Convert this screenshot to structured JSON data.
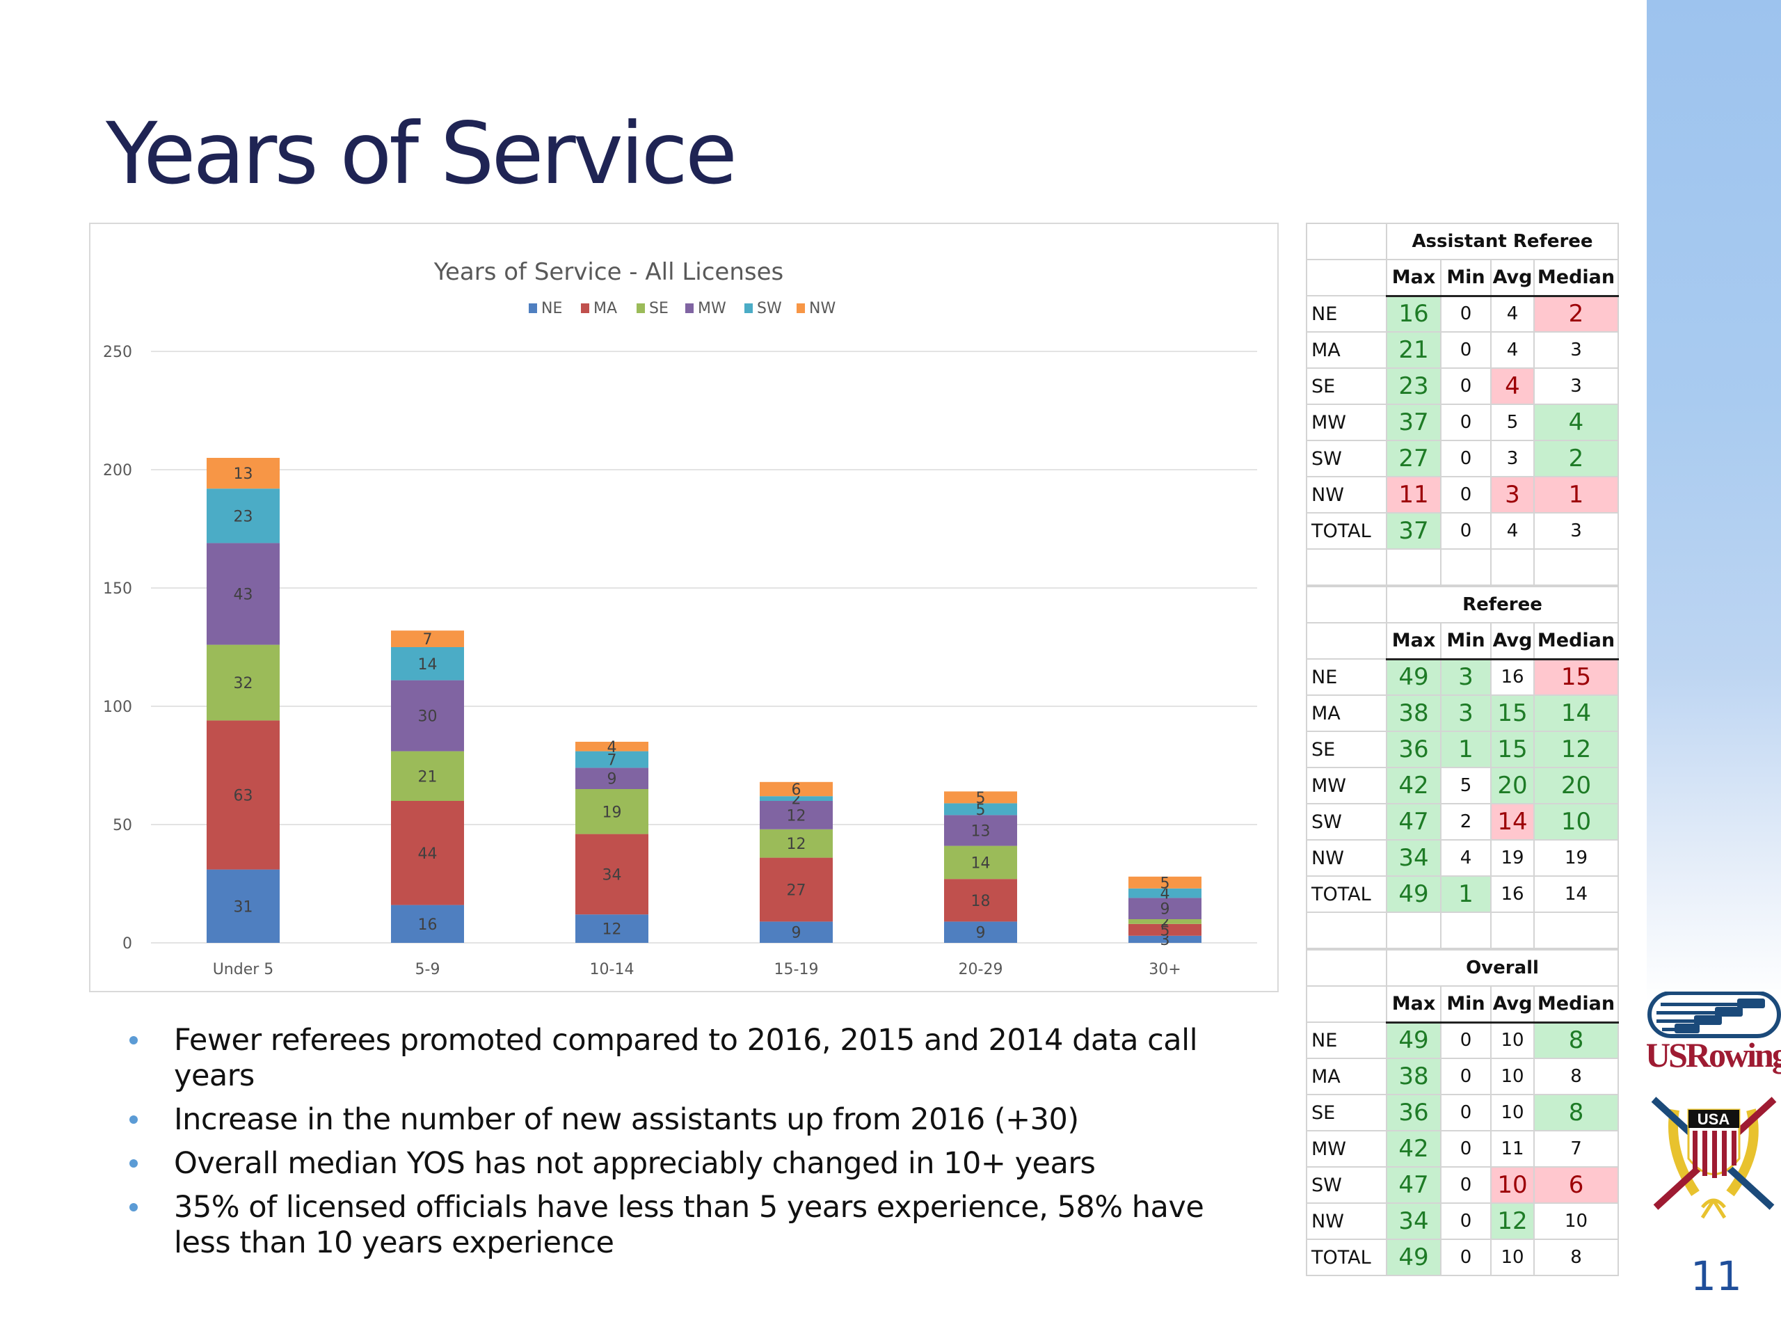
{
  "slide": {
    "title": "Years of Service",
    "page_number": "11",
    "logo_text": "USRowing",
    "crest_text": "USA",
    "bullets": [
      "Fewer referees promoted compared to 2016, 2015 and 2014 data call years",
      "Increase in the number of new assistants up from 2016 (+30)",
      "Overall median YOS has not appreciably changed in 10+ years",
      "35% of licensed officials have less than 5 years experience, 58% have less than 10 years experience"
    ]
  },
  "colors": {
    "NE": "#4F7FC0",
    "MA": "#C0504D",
    "SE": "#9BBB59",
    "MW": "#8064A2",
    "SW": "#4BACC6",
    "NW": "#F79646",
    "title": "#1F2454",
    "good_fill": "#C6EFCE",
    "good_text": "#1E7B26",
    "bad_fill": "#FFC7CE",
    "bad_text": "#9C0006"
  },
  "chart_data": {
    "type": "bar",
    "stacked": true,
    "title": "Years of Service - All Licenses",
    "xlabel": "",
    "ylabel": "",
    "categories": [
      "Under 5",
      "5-9",
      "10-14",
      "15-19",
      "20-29",
      "30+"
    ],
    "ylim": [
      0,
      250
    ],
    "yticks": [
      0,
      50,
      100,
      150,
      200,
      250
    ],
    "grid": true,
    "legend_position": "top-center",
    "data_labels": true,
    "series": [
      {
        "name": "NE",
        "values": [
          31,
          16,
          12,
          9,
          9,
          3
        ]
      },
      {
        "name": "MA",
        "values": [
          63,
          44,
          34,
          27,
          18,
          5
        ]
      },
      {
        "name": "SE",
        "values": [
          32,
          21,
          19,
          12,
          14,
          2
        ]
      },
      {
        "name": "MW",
        "values": [
          43,
          30,
          9,
          12,
          13,
          9
        ]
      },
      {
        "name": "SW",
        "values": [
          23,
          14,
          7,
          2,
          5,
          4
        ]
      },
      {
        "name": "NW",
        "values": [
          13,
          7,
          4,
          6,
          5,
          5
        ]
      }
    ]
  },
  "tables": {
    "columns": [
      "Max",
      "Min",
      "Avg",
      "Median"
    ],
    "groups": [
      {
        "title": "Assistant Referee",
        "rows": [
          {
            "label": "NE",
            "cells": [
              {
                "v": "16",
                "s": "good"
              },
              {
                "v": "0",
                "s": ""
              },
              {
                "v": "4",
                "s": ""
              },
              {
                "v": "2",
                "s": "bad"
              }
            ]
          },
          {
            "label": "MA",
            "cells": [
              {
                "v": "21",
                "s": "good"
              },
              {
                "v": "0",
                "s": ""
              },
              {
                "v": "4",
                "s": ""
              },
              {
                "v": "3",
                "s": ""
              }
            ]
          },
          {
            "label": "SE",
            "cells": [
              {
                "v": "23",
                "s": "good"
              },
              {
                "v": "0",
                "s": ""
              },
              {
                "v": "4",
                "s": "bad"
              },
              {
                "v": "3",
                "s": ""
              }
            ]
          },
          {
            "label": "MW",
            "cells": [
              {
                "v": "37",
                "s": "good"
              },
              {
                "v": "0",
                "s": ""
              },
              {
                "v": "5",
                "s": ""
              },
              {
                "v": "4",
                "s": "good"
              }
            ]
          },
          {
            "label": "SW",
            "cells": [
              {
                "v": "27",
                "s": "good"
              },
              {
                "v": "0",
                "s": ""
              },
              {
                "v": "3",
                "s": ""
              },
              {
                "v": "2",
                "s": "good"
              }
            ]
          },
          {
            "label": "NW",
            "cells": [
              {
                "v": "11",
                "s": "bad"
              },
              {
                "v": "0",
                "s": ""
              },
              {
                "v": "3",
                "s": "bad"
              },
              {
                "v": "1",
                "s": "bad"
              }
            ]
          },
          {
            "label": "TOTAL",
            "cells": [
              {
                "v": "37",
                "s": "good"
              },
              {
                "v": "0",
                "s": ""
              },
              {
                "v": "4",
                "s": ""
              },
              {
                "v": "3",
                "s": ""
              }
            ]
          }
        ]
      },
      {
        "title": "Referee",
        "rows": [
          {
            "label": "NE",
            "cells": [
              {
                "v": "49",
                "s": "good"
              },
              {
                "v": "3",
                "s": "good"
              },
              {
                "v": "16",
                "s": ""
              },
              {
                "v": "15",
                "s": "bad"
              }
            ]
          },
          {
            "label": "MA",
            "cells": [
              {
                "v": "38",
                "s": "good"
              },
              {
                "v": "3",
                "s": "good"
              },
              {
                "v": "15",
                "s": "good"
              },
              {
                "v": "14",
                "s": "good"
              }
            ]
          },
          {
            "label": "SE",
            "cells": [
              {
                "v": "36",
                "s": "good"
              },
              {
                "v": "1",
                "s": "good"
              },
              {
                "v": "15",
                "s": "good"
              },
              {
                "v": "12",
                "s": "good"
              }
            ]
          },
          {
            "label": "MW",
            "cells": [
              {
                "v": "42",
                "s": "good"
              },
              {
                "v": "5",
                "s": ""
              },
              {
                "v": "20",
                "s": "good"
              },
              {
                "v": "20",
                "s": "good"
              }
            ]
          },
          {
            "label": "SW",
            "cells": [
              {
                "v": "47",
                "s": "good"
              },
              {
                "v": "2",
                "s": ""
              },
              {
                "v": "14",
                "s": "bad"
              },
              {
                "v": "10",
                "s": "good"
              }
            ]
          },
          {
            "label": "NW",
            "cells": [
              {
                "v": "34",
                "s": "good"
              },
              {
                "v": "4",
                "s": ""
              },
              {
                "v": "19",
                "s": ""
              },
              {
                "v": "19",
                "s": ""
              }
            ]
          },
          {
            "label": "TOTAL",
            "cells": [
              {
                "v": "49",
                "s": "good"
              },
              {
                "v": "1",
                "s": "good"
              },
              {
                "v": "16",
                "s": ""
              },
              {
                "v": "14",
                "s": ""
              }
            ]
          }
        ]
      },
      {
        "title": "Overall",
        "rows": [
          {
            "label": "NE",
            "cells": [
              {
                "v": "49",
                "s": "good"
              },
              {
                "v": "0",
                "s": ""
              },
              {
                "v": "10",
                "s": ""
              },
              {
                "v": "8",
                "s": "good"
              }
            ]
          },
          {
            "label": "MA",
            "cells": [
              {
                "v": "38",
                "s": "good"
              },
              {
                "v": "0",
                "s": ""
              },
              {
                "v": "10",
                "s": ""
              },
              {
                "v": "8",
                "s": ""
              }
            ]
          },
          {
            "label": "SE",
            "cells": [
              {
                "v": "36",
                "s": "good"
              },
              {
                "v": "0",
                "s": ""
              },
              {
                "v": "10",
                "s": ""
              },
              {
                "v": "8",
                "s": "good"
              }
            ]
          },
          {
            "label": "MW",
            "cells": [
              {
                "v": "42",
                "s": "good"
              },
              {
                "v": "0",
                "s": ""
              },
              {
                "v": "11",
                "s": ""
              },
              {
                "v": "7",
                "s": ""
              }
            ]
          },
          {
            "label": "SW",
            "cells": [
              {
                "v": "47",
                "s": "good"
              },
              {
                "v": "0",
                "s": ""
              },
              {
                "v": "10",
                "s": "bad"
              },
              {
                "v": "6",
                "s": "bad"
              }
            ]
          },
          {
            "label": "NW",
            "cells": [
              {
                "v": "34",
                "s": "good"
              },
              {
                "v": "0",
                "s": ""
              },
              {
                "v": "12",
                "s": "good"
              },
              {
                "v": "10",
                "s": ""
              }
            ]
          },
          {
            "label": "TOTAL",
            "cells": [
              {
                "v": "49",
                "s": "good"
              },
              {
                "v": "0",
                "s": ""
              },
              {
                "v": "10",
                "s": ""
              },
              {
                "v": "8",
                "s": ""
              }
            ]
          }
        ]
      }
    ]
  }
}
